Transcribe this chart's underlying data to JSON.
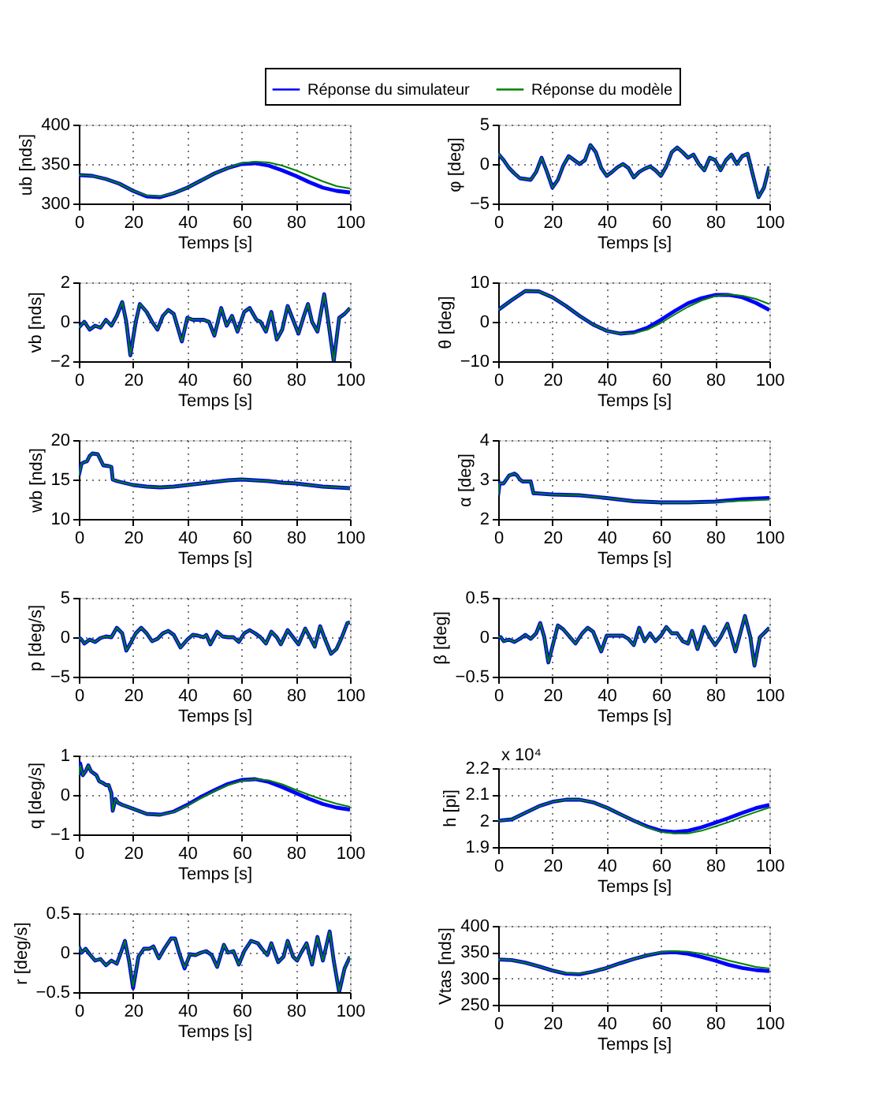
{
  "chart_data": [
    {
      "type": "line",
      "ylabel": "ub [nds]",
      "xlabel": "Temps [s]",
      "xlim": [
        0,
        100
      ],
      "xticks": [
        0,
        20,
        40,
        60,
        80,
        100
      ],
      "ylim": [
        300,
        400
      ],
      "yticks": [
        300,
        350,
        400
      ],
      "grid": true,
      "legend": "top",
      "line_style": "solid",
      "marker": "none",
      "x": [
        0,
        5,
        10,
        15,
        20,
        25,
        30,
        35,
        40,
        45,
        50,
        55,
        60,
        65,
        70,
        75,
        80,
        85,
        90,
        95,
        100
      ],
      "series": [
        {
          "name": "Réponse du simulateur",
          "color": "#0000ff",
          "values": [
            336,
            335,
            331,
            325,
            316,
            309,
            308,
            313,
            320,
            329,
            338,
            345,
            350,
            351,
            348,
            342,
            335,
            327,
            320,
            316,
            314
          ]
        },
        {
          "name": "Réponse du modèle",
          "color": "#008000",
          "values": [
            336,
            335,
            331,
            325,
            316,
            310,
            309,
            313,
            320,
            329,
            338,
            345,
            351,
            353,
            352,
            348,
            342,
            335,
            328,
            322,
            319
          ]
        }
      ]
    },
    {
      "type": "line",
      "ylabel": "φ [deg]",
      "xlabel": "Temps [s]",
      "xlim": [
        0,
        100
      ],
      "xticks": [
        0,
        20,
        40,
        60,
        80,
        100
      ],
      "ylim": [
        -5,
        5
      ],
      "yticks": [
        -5,
        0,
        5
      ],
      "grid": true,
      "line_style": "solid",
      "marker": "none",
      "x": [
        0,
        2,
        4,
        6,
        8,
        10,
        12,
        14,
        16,
        18,
        20,
        22,
        24,
        26,
        28,
        30,
        32,
        34,
        36,
        38,
        40,
        42,
        44,
        46,
        48,
        50,
        52,
        54,
        56,
        58,
        60,
        62,
        64,
        66,
        68,
        70,
        72,
        74,
        76,
        78,
        80,
        82,
        84,
        86,
        88,
        90,
        92,
        94,
        96,
        98,
        100
      ],
      "series": [
        {
          "color": "#0000ff",
          "values": [
            1.3,
            0.5,
            -0.5,
            -1.2,
            -1.8,
            -1.9,
            -2.0,
            -1.0,
            0.8,
            -1.0,
            -3.0,
            -2.0,
            -0.2,
            1.0,
            0.5,
            0.0,
            0.5,
            2.4,
            1.5,
            -0.5,
            -1.5,
            -1.0,
            -0.4,
            0.0,
            -0.5,
            -1.7,
            -1.0,
            -0.6,
            -0.3,
            -0.8,
            -1.5,
            -0.3,
            1.5,
            2.1,
            1.5,
            0.8,
            1.2,
            0.0,
            -0.8,
            0.8,
            0.5,
            -0.8,
            0.5,
            1.2,
            0.0,
            1.0,
            1.3,
            -1.5,
            -4.2,
            -3.0,
            -0.3
          ]
        },
        {
          "color": "#008000",
          "values": [
            1.3,
            0.5,
            -0.5,
            -1.2,
            -1.8,
            -1.9,
            -2.0,
            -1.0,
            0.8,
            -1.0,
            -3.0,
            -2.0,
            -0.2,
            1.0,
            0.5,
            0.0,
            0.5,
            2.4,
            1.5,
            -0.5,
            -1.5,
            -1.0,
            -0.4,
            0.0,
            -0.5,
            -1.7,
            -1.0,
            -0.6,
            -0.3,
            -0.8,
            -1.5,
            -0.3,
            1.5,
            2.1,
            1.5,
            0.8,
            1.2,
            0.0,
            -0.8,
            0.8,
            0.5,
            -0.8,
            0.5,
            1.2,
            0.0,
            1.0,
            1.3,
            -1.5,
            -4.2,
            -3.0,
            -0.3
          ]
        }
      ]
    },
    {
      "type": "line",
      "ylabel": "vb [nds]",
      "xlabel": "Temps [s]",
      "xlim": [
        0,
        100
      ],
      "xticks": [
        0,
        20,
        40,
        60,
        80,
        100
      ],
      "ylim": [
        -2,
        2
      ],
      "yticks": [
        -2,
        0,
        2
      ],
      "grid": true,
      "line_style": "solid",
      "marker": "none",
      "x": [
        0,
        2,
        4,
        6,
        8,
        10,
        12,
        14,
        16,
        17.5,
        19,
        21,
        22.5,
        25,
        27,
        29,
        31,
        33,
        35,
        38,
        40,
        42,
        44,
        46,
        48,
        50,
        52.5,
        54.5,
        56.5,
        58.5,
        61,
        63,
        65.5,
        67,
        69,
        71,
        73,
        75,
        77,
        79,
        81,
        83,
        84.5,
        86,
        88,
        90.5,
        92,
        94,
        96,
        98,
        100
      ],
      "series": [
        {
          "color": "#0000ff",
          "values": [
            -0.3,
            0.0,
            -0.4,
            -0.2,
            -0.3,
            0.1,
            -0.2,
            0.3,
            1.0,
            0.0,
            -1.7,
            0.0,
            0.9,
            0.5,
            0.0,
            -0.4,
            0.3,
            0.6,
            0.4,
            -1.0,
            0.2,
            0.1,
            0.1,
            0.1,
            0.0,
            -0.7,
            0.7,
            -0.2,
            0.3,
            -0.5,
            0.5,
            0.7,
            0.1,
            0.0,
            -0.5,
            0.5,
            -0.9,
            -0.4,
            0.8,
            0.1,
            -0.6,
            0.3,
            0.9,
            0.0,
            -0.5,
            1.4,
            0.0,
            -2.0,
            0.2,
            0.4,
            0.7
          ]
        },
        {
          "color": "#008000",
          "values": [
            -0.3,
            0.0,
            -0.4,
            -0.2,
            -0.3,
            0.1,
            -0.2,
            0.3,
            1.0,
            0.0,
            -1.7,
            0.0,
            0.9,
            0.5,
            0.0,
            -0.4,
            0.3,
            0.6,
            0.4,
            -1.0,
            0.2,
            0.1,
            0.1,
            0.1,
            0.0,
            -0.7,
            0.7,
            -0.2,
            0.3,
            -0.5,
            0.5,
            0.7,
            0.1,
            0.0,
            -0.5,
            0.5,
            -0.9,
            -0.4,
            0.8,
            0.1,
            -0.6,
            0.3,
            0.9,
            0.0,
            -0.5,
            1.4,
            0.0,
            -2.0,
            0.2,
            0.4,
            0.7
          ]
        }
      ]
    },
    {
      "type": "line",
      "ylabel": "θ [deg]",
      "xlabel": "Temps [s]",
      "xlim": [
        0,
        100
      ],
      "xticks": [
        0,
        20,
        40,
        60,
        80,
        100
      ],
      "ylim": [
        -10,
        10
      ],
      "yticks": [
        -10,
        0,
        10
      ],
      "grid": true,
      "line_style": "solid",
      "marker": "none",
      "x": [
        0,
        5,
        10,
        15,
        20,
        25,
        30,
        35,
        40,
        45,
        50,
        55,
        60,
        65,
        70,
        75,
        80,
        85,
        90,
        95,
        100
      ],
      "series": [
        {
          "color": "#0000ff",
          "values": [
            3.0,
            5.5,
            7.8,
            7.7,
            6.2,
            4.0,
            1.5,
            -0.7,
            -2.3,
            -3.0,
            -2.7,
            -1.5,
            0.5,
            2.7,
            4.7,
            6.0,
            6.8,
            6.8,
            6.2,
            4.8,
            3.0
          ]
        },
        {
          "color": "#008000",
          "values": [
            3.0,
            5.5,
            7.8,
            7.7,
            6.2,
            4.0,
            1.5,
            -0.7,
            -2.3,
            -3.0,
            -2.9,
            -2.0,
            -0.3,
            1.8,
            3.8,
            5.4,
            6.5,
            6.9,
            6.6,
            5.8,
            4.5
          ]
        }
      ]
    },
    {
      "type": "line",
      "ylabel": "wb [nds]",
      "xlabel": "Temps [s]",
      "xlim": [
        0,
        100
      ],
      "xticks": [
        0,
        20,
        40,
        60,
        80,
        100
      ],
      "ylim": [
        10,
        20
      ],
      "yticks": [
        10,
        15,
        20
      ],
      "grid": true,
      "line_style": "solid",
      "marker": "none",
      "x": [
        0,
        1,
        2,
        3,
        4,
        5,
        7,
        8,
        9,
        11,
        12,
        12.5,
        14,
        20,
        25,
        30,
        35,
        40,
        45,
        50,
        55,
        60,
        65,
        70,
        75,
        80,
        85,
        90,
        95,
        100
      ],
      "series": [
        {
          "color": "#0000ff",
          "values": [
            15.5,
            17.0,
            17.2,
            17.3,
            18.0,
            18.3,
            18.2,
            17.5,
            16.8,
            16.7,
            16.6,
            15.0,
            14.8,
            14.3,
            14.1,
            14.0,
            14.1,
            14.3,
            14.5,
            14.7,
            14.9,
            15.0,
            14.9,
            14.8,
            14.6,
            14.5,
            14.3,
            14.1,
            14.0,
            13.9
          ]
        },
        {
          "color": "#008000",
          "values": [
            15.5,
            17.0,
            17.2,
            17.3,
            18.0,
            18.3,
            18.2,
            17.5,
            16.8,
            16.7,
            16.6,
            15.0,
            14.8,
            14.3,
            14.1,
            14.0,
            14.1,
            14.3,
            14.5,
            14.7,
            14.9,
            15.0,
            14.9,
            14.8,
            14.6,
            14.5,
            14.3,
            14.1,
            14.0,
            13.9
          ]
        }
      ]
    },
    {
      "type": "line",
      "ylabel": "α [deg]",
      "xlabel": "Temps [s]",
      "xlim": [
        0,
        100
      ],
      "xticks": [
        0,
        20,
        40,
        60,
        80,
        100
      ],
      "ylim": [
        2,
        4
      ],
      "yticks": [
        2,
        3,
        4
      ],
      "grid": true,
      "line_style": "solid",
      "marker": "none",
      "x": [
        0,
        0.5,
        2,
        3,
        4,
        6,
        7,
        8,
        9,
        11,
        12,
        13,
        14,
        20,
        30,
        40,
        50,
        60,
        70,
        80,
        90,
        100
      ],
      "series": [
        {
          "color": "#0000ff",
          "values": [
            2.6,
            2.9,
            2.9,
            3.0,
            3.1,
            3.15,
            3.1,
            3.0,
            2.95,
            2.95,
            2.95,
            2.65,
            2.65,
            2.62,
            2.6,
            2.53,
            2.45,
            2.42,
            2.42,
            2.44,
            2.5,
            2.53
          ]
        },
        {
          "color": "#008000",
          "values": [
            2.6,
            2.9,
            2.9,
            3.0,
            3.1,
            3.15,
            3.1,
            3.0,
            2.95,
            2.95,
            2.95,
            2.65,
            2.65,
            2.62,
            2.6,
            2.53,
            2.45,
            2.42,
            2.42,
            2.43,
            2.46,
            2.49
          ]
        }
      ]
    },
    {
      "type": "line",
      "ylabel": "p [deg/s]",
      "xlabel": "Temps [s]",
      "xlim": [
        0,
        100
      ],
      "xticks": [
        0,
        20,
        40,
        60,
        80,
        100
      ],
      "ylim": [
        -5,
        5
      ],
      "yticks": [
        -5,
        0,
        5
      ],
      "grid": true,
      "line_style": "solid",
      "marker": "none",
      "x": [
        0,
        1,
        2,
        4,
        6,
        8,
        10,
        12,
        14,
        16,
        17.5,
        19,
        21,
        23,
        25,
        27,
        29,
        31,
        33,
        35,
        37.5,
        40,
        42,
        44,
        46,
        47,
        48.5,
        51,
        53,
        55,
        57,
        59,
        61,
        63,
        65,
        67,
        69,
        71,
        73,
        74.5,
        77,
        79,
        81,
        83.5,
        85.5,
        87,
        89,
        90.5,
        93,
        95,
        97,
        99,
        100
      ],
      "series": [
        {
          "color": "#0000ff",
          "values": [
            0.0,
            -0.3,
            -0.8,
            -0.3,
            -0.6,
            -0.1,
            0.1,
            0.0,
            1.2,
            0.5,
            -1.7,
            -0.8,
            0.5,
            1.2,
            0.5,
            -0.5,
            -0.2,
            0.5,
            0.8,
            0.3,
            -1.3,
            -0.3,
            0.3,
            0.2,
            0.0,
            0.3,
            -0.9,
            0.7,
            0.1,
            0.0,
            0.0,
            -0.6,
            0.5,
            0.9,
            0.5,
            0.0,
            -0.8,
            0.7,
            0.0,
            -0.9,
            0.9,
            0.0,
            -0.9,
            1.1,
            -0.2,
            -1.2,
            1.4,
            0.0,
            -2.1,
            -1.5,
            0.0,
            1.8,
            1.9
          ]
        },
        {
          "color": "#008000",
          "values": [
            0.0,
            -0.3,
            -0.8,
            -0.3,
            -0.6,
            -0.1,
            0.1,
            0.0,
            1.2,
            0.5,
            -1.7,
            -0.8,
            0.5,
            1.2,
            0.5,
            -0.5,
            -0.2,
            0.5,
            0.8,
            0.3,
            -1.3,
            -0.3,
            0.3,
            0.2,
            0.0,
            0.3,
            -0.9,
            0.7,
            0.1,
            0.0,
            0.0,
            -0.6,
            0.5,
            0.9,
            0.5,
            0.0,
            -0.8,
            0.7,
            0.0,
            -0.9,
            0.9,
            0.0,
            -0.9,
            1.1,
            -0.2,
            -1.2,
            1.4,
            0.0,
            -2.1,
            -1.5,
            0.0,
            1.8,
            1.9
          ]
        }
      ]
    },
    {
      "type": "line",
      "ylabel": "β [deg]",
      "xlabel": "Temps [s]",
      "xlim": [
        0,
        100
      ],
      "xticks": [
        0,
        20,
        40,
        60,
        80,
        100
      ],
      "ylim": [
        -0.5,
        0.5
      ],
      "yticks": [
        -0.5,
        0,
        0.5
      ],
      "grid": true,
      "line_style": "solid",
      "marker": "none",
      "x": [
        0,
        1,
        2,
        4,
        6,
        8,
        10,
        12,
        14,
        15.5,
        17,
        18.5,
        20.5,
        22,
        24,
        26,
        28.5,
        31,
        33,
        35,
        38,
        40,
        42,
        44,
        46,
        48,
        50,
        52,
        54,
        56,
        58,
        60,
        62,
        64,
        66,
        68,
        70,
        71.5,
        73.5,
        76,
        78,
        80,
        82,
        84.5,
        86,
        87.5,
        91,
        93,
        94.5,
        96.5,
        98,
        100
      ],
      "series": [
        {
          "color": "#0000ff",
          "values": [
            0.0,
            0.0,
            -0.05,
            -0.03,
            -0.06,
            -0.02,
            0.03,
            -0.02,
            0.05,
            0.18,
            0.0,
            -0.32,
            -0.05,
            0.15,
            0.1,
            0.02,
            -0.08,
            0.05,
            0.12,
            0.07,
            -0.18,
            0.02,
            0.02,
            0.02,
            0.02,
            -0.02,
            -0.1,
            0.12,
            -0.05,
            0.05,
            -0.05,
            0.02,
            0.13,
            0.05,
            0.05,
            -0.05,
            -0.08,
            0.08,
            -0.15,
            0.13,
            0.0,
            -0.1,
            0.0,
            0.17,
            0.0,
            -0.18,
            0.27,
            0.0,
            -0.36,
            0.0,
            0.05,
            0.12
          ]
        },
        {
          "color": "#008000",
          "values": [
            0.0,
            0.0,
            -0.05,
            -0.03,
            -0.06,
            -0.02,
            0.03,
            -0.02,
            0.05,
            0.18,
            0.0,
            -0.32,
            -0.05,
            0.15,
            0.1,
            0.02,
            -0.08,
            0.05,
            0.12,
            0.07,
            -0.18,
            0.02,
            0.02,
            0.02,
            0.02,
            -0.02,
            -0.1,
            0.12,
            -0.05,
            0.05,
            -0.05,
            0.02,
            0.13,
            0.05,
            0.05,
            -0.05,
            -0.08,
            0.08,
            -0.15,
            0.13,
            0.0,
            -0.1,
            0.0,
            0.17,
            0.0,
            -0.18,
            0.27,
            0.0,
            -0.36,
            0.0,
            0.05,
            0.12
          ]
        }
      ]
    },
    {
      "type": "line",
      "ylabel": "q [deg/s]",
      "xlabel": "Temps [s]",
      "xlim": [
        0,
        100
      ],
      "xticks": [
        0,
        20,
        40,
        60,
        80,
        100
      ],
      "ylim": [
        -1,
        1
      ],
      "yticks": [
        -1,
        0,
        1
      ],
      "grid": true,
      "line_style": "solid",
      "marker": "none",
      "x": [
        0,
        0.5,
        1.5,
        2.5,
        3.5,
        4.5,
        5.5,
        6.5,
        7.5,
        9,
        10,
        11,
        12,
        12.5,
        13.5,
        14.5,
        16,
        20,
        25,
        30,
        35,
        40,
        45,
        50,
        55,
        60,
        65,
        70,
        75,
        80,
        85,
        90,
        95,
        100
      ],
      "series": [
        {
          "color": "#0000ff",
          "values": [
            0.5,
            0.8,
            0.5,
            0.6,
            0.75,
            0.6,
            0.55,
            0.5,
            0.35,
            0.3,
            0.25,
            0.25,
            0.05,
            -0.4,
            -0.1,
            -0.2,
            -0.25,
            -0.35,
            -0.48,
            -0.5,
            -0.42,
            -0.25,
            -0.05,
            0.12,
            0.28,
            0.38,
            0.4,
            0.33,
            0.2,
            0.05,
            -0.1,
            -0.23,
            -0.32,
            -0.37
          ]
        },
        {
          "color": "#008000",
          "values": [
            0.5,
            0.75,
            0.5,
            0.6,
            0.75,
            0.6,
            0.55,
            0.5,
            0.35,
            0.3,
            0.25,
            0.25,
            0.05,
            -0.4,
            -0.1,
            -0.2,
            -0.25,
            -0.35,
            -0.48,
            -0.5,
            -0.43,
            -0.27,
            -0.08,
            0.1,
            0.25,
            0.36,
            0.4,
            0.37,
            0.27,
            0.13,
            0.0,
            -0.12,
            -0.22,
            -0.3
          ]
        }
      ]
    },
    {
      "type": "line",
      "ylabel": "h [pi]",
      "xlabel": "Temps [s]",
      "xlim": [
        0,
        100
      ],
      "xticks": [
        0,
        20,
        40,
        60,
        80,
        100
      ],
      "ylim": [
        1.9,
        2.2
      ],
      "yticks": [
        1.9,
        2,
        2.1,
        2.2
      ],
      "grid": true,
      "line_style": "solid",
      "marker": "none",
      "annotations": [
        "x 10⁴"
      ],
      "x": [
        0,
        5,
        10,
        15,
        20,
        25,
        30,
        35,
        40,
        45,
        50,
        55,
        60,
        65,
        70,
        75,
        80,
        85,
        90,
        95,
        100
      ],
      "series": [
        {
          "color": "#0000ff",
          "values": [
            2.0,
            2.005,
            2.03,
            2.055,
            2.072,
            2.08,
            2.08,
            2.07,
            2.05,
            2.025,
            2.0,
            1.978,
            1.962,
            1.957,
            1.962,
            1.975,
            1.992,
            2.01,
            2.03,
            2.048,
            2.06
          ]
        },
        {
          "color": "#008000",
          "values": [
            2.0,
            2.005,
            2.03,
            2.055,
            2.072,
            2.08,
            2.08,
            2.07,
            2.05,
            2.025,
            2.0,
            1.975,
            1.958,
            1.952,
            1.952,
            1.962,
            1.978,
            1.995,
            2.015,
            2.033,
            2.05
          ]
        }
      ]
    },
    {
      "type": "line",
      "ylabel": "r [deg/s]",
      "xlabel": "Temps [s]",
      "xlim": [
        0,
        100
      ],
      "xticks": [
        0,
        20,
        40,
        60,
        80,
        100
      ],
      "ylim": [
        -0.5,
        0.5
      ],
      "yticks": [
        -0.5,
        0,
        0.5
      ],
      "grid": true,
      "line_style": "solid",
      "marker": "none",
      "x": [
        0,
        1,
        2.5,
        4,
        6,
        8,
        10,
        12,
        14,
        15.5,
        17,
        18.5,
        20,
        22,
        24,
        26,
        27.5,
        29.5,
        31.5,
        34,
        35.5,
        37,
        39,
        41,
        43,
        45,
        47,
        49,
        51,
        53.5,
        55,
        57,
        59,
        61,
        63.5,
        66,
        67.5,
        69.5,
        71,
        73.5,
        75.5,
        77,
        79,
        80.5,
        82,
        84,
        86,
        88,
        90,
        92.5,
        94,
        96,
        98,
        100
      ],
      "series": [
        {
          "color": "#0000ff",
          "values": [
            0.08,
            0.0,
            0.05,
            -0.02,
            -0.1,
            -0.08,
            -0.16,
            -0.1,
            -0.14,
            0.0,
            0.15,
            -0.1,
            -0.45,
            -0.05,
            0.05,
            0.05,
            0.08,
            -0.07,
            0.05,
            0.18,
            0.18,
            0.0,
            -0.2,
            -0.02,
            -0.03,
            0.0,
            0.02,
            -0.03,
            -0.18,
            0.1,
            0.0,
            0.02,
            -0.15,
            0.02,
            0.15,
            0.12,
            0.05,
            -0.03,
            0.12,
            -0.12,
            -0.05,
            0.15,
            -0.05,
            -0.1,
            0.0,
            0.12,
            -0.15,
            0.2,
            -0.1,
            0.27,
            -0.1,
            -0.5,
            -0.2,
            -0.05
          ]
        },
        {
          "color": "#008000",
          "values": [
            0.08,
            0.0,
            0.05,
            -0.02,
            -0.1,
            -0.08,
            -0.16,
            -0.1,
            -0.14,
            0.0,
            0.15,
            -0.1,
            -0.43,
            -0.05,
            0.05,
            0.05,
            0.08,
            -0.07,
            0.05,
            0.18,
            0.18,
            0.0,
            -0.19,
            -0.02,
            -0.03,
            0.0,
            0.02,
            -0.03,
            -0.18,
            0.1,
            0.0,
            0.02,
            -0.15,
            0.02,
            0.15,
            0.12,
            0.05,
            -0.03,
            0.12,
            -0.12,
            -0.05,
            0.15,
            -0.05,
            -0.1,
            0.0,
            0.12,
            -0.15,
            0.2,
            -0.1,
            0.27,
            -0.1,
            -0.49,
            -0.2,
            -0.05
          ]
        }
      ]
    },
    {
      "type": "line",
      "ylabel": "Vtas [nds]",
      "xlabel": "Temps [s]",
      "xlim": [
        0,
        100
      ],
      "xticks": [
        0,
        20,
        40,
        60,
        80,
        100
      ],
      "ylim": [
        250,
        400
      ],
      "yticks": [
        250,
        300,
        350,
        400
      ],
      "grid": true,
      "line_style": "solid",
      "marker": "none",
      "x": [
        0,
        5,
        10,
        15,
        20,
        25,
        30,
        35,
        40,
        45,
        50,
        55,
        60,
        65,
        70,
        75,
        80,
        85,
        90,
        95,
        100
      ],
      "series": [
        {
          "color": "#0000ff",
          "values": [
            336,
            335,
            330,
            323,
            315,
            309,
            308,
            313,
            320,
            329,
            337,
            344,
            349,
            350,
            347,
            341,
            334,
            326,
            320,
            316,
            314
          ]
        },
        {
          "color": "#008000",
          "values": [
            336,
            335,
            330,
            323,
            315,
            310,
            309,
            313,
            320,
            329,
            337,
            344,
            350,
            352,
            351,
            347,
            341,
            334,
            328,
            322,
            319
          ]
        }
      ]
    }
  ]
}
